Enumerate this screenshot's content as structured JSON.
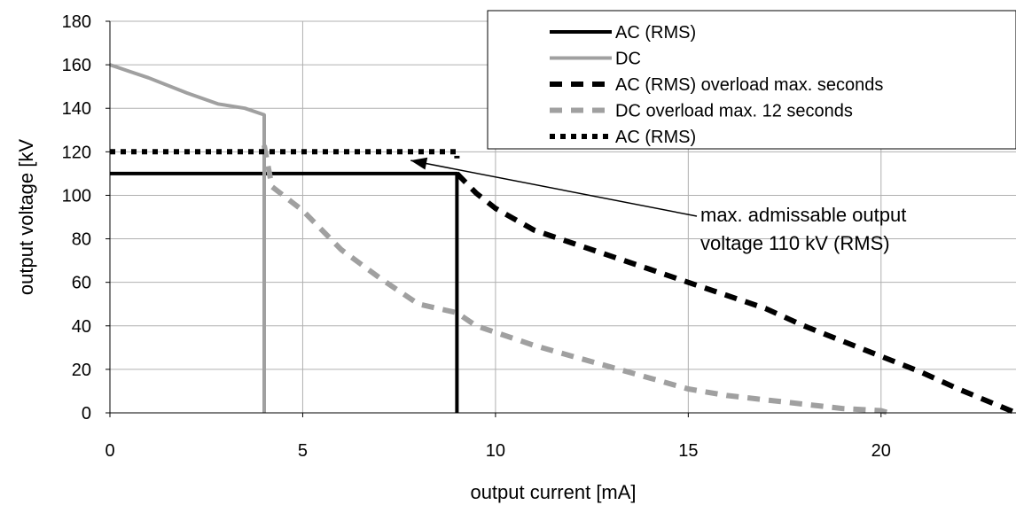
{
  "chart_data": {
    "type": "line",
    "title": "",
    "xlabel": "output current [mA]",
    "ylabel": "output voltage [kV",
    "xlim": [
      0,
      23.5
    ],
    "ylim": [
      0,
      180
    ],
    "x_ticks": [
      0,
      5,
      10,
      15,
      20
    ],
    "y_ticks": [
      0,
      20,
      40,
      60,
      80,
      100,
      120,
      140,
      160,
      180
    ],
    "grid": true,
    "legend_position": "top-right",
    "series": [
      {
        "name": "AC (RMS)",
        "color": "#000000",
        "style": "solid",
        "points": [
          [
            0,
            110
          ],
          [
            9,
            110
          ],
          [
            9,
            0
          ]
        ]
      },
      {
        "name": "DC",
        "color": "#a0a0a0",
        "style": "solid",
        "points": [
          [
            0,
            160
          ],
          [
            0.5,
            157
          ],
          [
            1,
            154
          ],
          [
            2,
            147
          ],
          [
            2.8,
            142
          ],
          [
            3.5,
            140
          ],
          [
            4,
            137
          ],
          [
            4,
            0
          ]
        ]
      },
      {
        "name": "AC (RMS) overload max. seconds",
        "color": "#000000",
        "style": "dash",
        "points": [
          [
            9,
            110
          ],
          [
            9.5,
            101
          ],
          [
            10,
            94
          ],
          [
            11,
            84
          ],
          [
            12,
            78
          ],
          [
            13,
            72
          ],
          [
            14,
            66
          ],
          [
            15,
            60
          ],
          [
            16,
            54
          ],
          [
            17,
            48
          ],
          [
            18,
            40
          ],
          [
            19,
            33
          ],
          [
            20,
            26
          ],
          [
            21,
            19
          ],
          [
            22,
            11
          ],
          [
            23.5,
            0
          ]
        ]
      },
      {
        "name": "DC overload max. 12 seconds",
        "color": "#a0a0a0",
        "style": "dash",
        "points": [
          [
            4,
            123
          ],
          [
            4.2,
            104
          ],
          [
            5,
            93
          ],
          [
            6,
            75
          ],
          [
            7,
            62
          ],
          [
            8,
            50
          ],
          [
            9,
            46
          ],
          [
            9.5,
            40
          ],
          [
            10,
            37
          ],
          [
            11,
            31
          ],
          [
            12,
            26
          ],
          [
            13,
            21
          ],
          [
            14,
            16
          ],
          [
            15,
            11
          ],
          [
            16,
            8
          ],
          [
            17,
            6
          ],
          [
            18,
            4
          ],
          [
            19,
            2
          ],
          [
            20,
            1
          ],
          [
            20.2,
            0
          ]
        ]
      },
      {
        "name": "AC (RMS)",
        "color": "#000000",
        "style": "dot",
        "points": [
          [
            0,
            120
          ],
          [
            9,
            120
          ],
          [
            9,
            117
          ]
        ]
      }
    ],
    "annotation": {
      "lines": [
        "max. admissable output",
        "voltage 110 kV (RMS)"
      ],
      "arrow_to": [
        7.8,
        116
      ]
    }
  }
}
